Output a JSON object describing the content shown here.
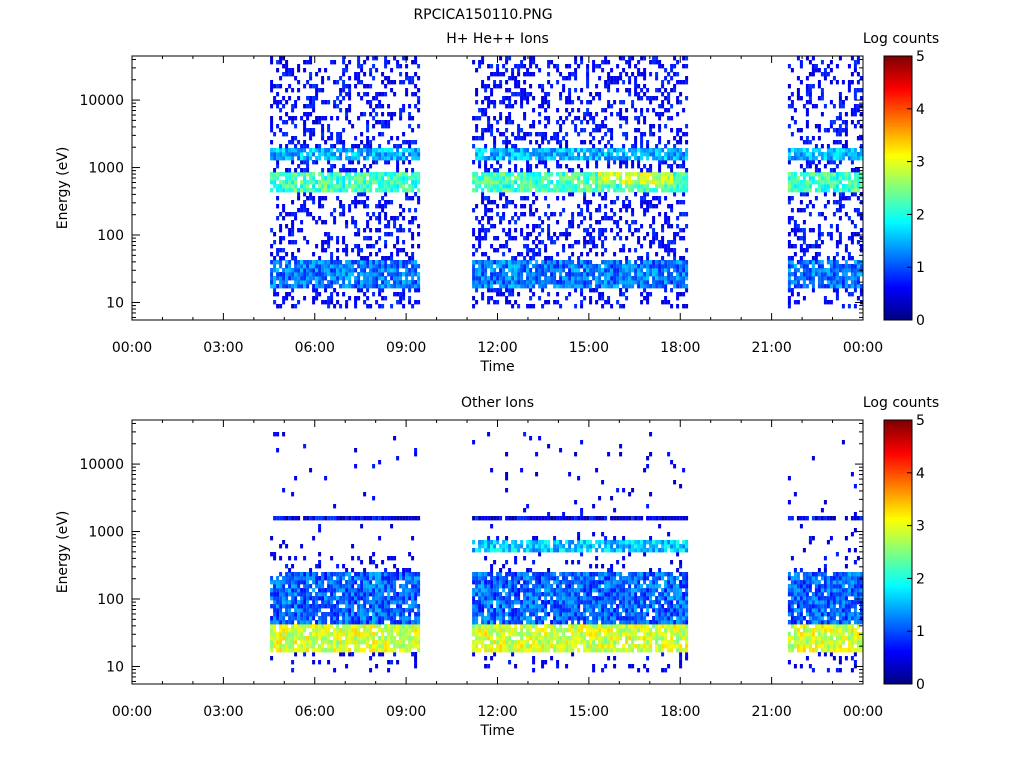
{
  "figure_title": "RPCICA150110.PNG",
  "chart_data": [
    {
      "type": "heatmap",
      "title": "H+ He++ Ions",
      "xlabel": "Time",
      "ylabel": "Energy (eV)",
      "x_unit": "hours of day",
      "xlim": [
        0,
        24
      ],
      "x_ticks": [
        "00:00",
        "03:00",
        "06:00",
        "09:00",
        "12:00",
        "15:00",
        "18:00",
        "21:00",
        "00:00"
      ],
      "y_scale": "log",
      "ylim": [
        5.5,
        45000
      ],
      "y_ticks": [
        "10",
        "100",
        "1000",
        "10000"
      ],
      "colorbar": {
        "label": "Log counts",
        "range": [
          0,
          5
        ],
        "ticks": [
          "0",
          "1",
          "2",
          "3",
          "4",
          "5"
        ]
      },
      "data_intervals": [
        {
          "start": "04:32",
          "end": "09:25"
        },
        {
          "start": "11:10",
          "end": "18:15"
        },
        {
          "start": "21:32",
          "end": "23:55"
        }
      ],
      "bands": [
        {
          "energy_range_eV": [
            17,
            40
          ],
          "log_counts": 1.2
        },
        {
          "energy_range_eV": [
            420,
            850
          ],
          "log_counts": 2.2
        },
        {
          "energy_range_eV": [
            1300,
            1900
          ],
          "log_counts": 1.5
        },
        {
          "energy_range_eV": [
            600,
            900
          ],
          "time": "16:30",
          "log_counts": 2.8
        }
      ],
      "scatter_energy_range_eV": [
        8,
        45000
      ],
      "scatter_log_counts": 0.4
    },
    {
      "type": "heatmap",
      "title": "Other Ions",
      "xlabel": "Time",
      "ylabel": "Energy (eV)",
      "x_unit": "hours of day",
      "xlim": [
        0,
        24
      ],
      "x_ticks": [
        "00:00",
        "03:00",
        "06:00",
        "09:00",
        "12:00",
        "15:00",
        "18:00",
        "21:00",
        "00:00"
      ],
      "y_scale": "log",
      "ylim": [
        5.5,
        45000
      ],
      "y_ticks": [
        "10",
        "100",
        "1000",
        "10000"
      ],
      "colorbar": {
        "label": "Log counts",
        "range": [
          0,
          5
        ],
        "ticks": [
          "0",
          "1",
          "2",
          "3",
          "4",
          "5"
        ]
      },
      "data_intervals": [
        {
          "start": "04:32",
          "end": "09:25"
        },
        {
          "start": "11:10",
          "end": "18:15"
        },
        {
          "start": "21:32",
          "end": "23:55"
        }
      ],
      "bands": [
        {
          "energy_range_eV": [
            17,
            45
          ],
          "log_counts": 2.9
        },
        {
          "energy_range_eV": [
            45,
            250
          ],
          "log_counts": 1.1
        },
        {
          "energy_range_eV": [
            500,
            750
          ],
          "time_range": [
            "11:10",
            "18:15"
          ],
          "log_counts": 1.6
        },
        {
          "energy_range_eV": [
            1400,
            1700
          ],
          "log_counts": 0.5
        }
      ],
      "scatter_energy_range_eV": [
        8,
        30000
      ],
      "scatter_log_counts": 0.3
    }
  ]
}
